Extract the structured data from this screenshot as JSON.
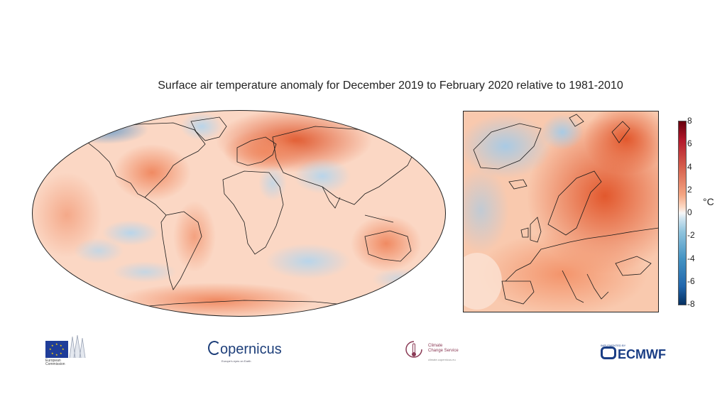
{
  "title": "Surface air temperature anomaly for December 2019 to February 2020 relative to 1981-2010",
  "colorbar": {
    "unit": "°C",
    "ticks": [
      "8",
      "6",
      "4",
      "2",
      "0",
      "-2",
      "-4",
      "-6",
      "-8"
    ],
    "colors": [
      "#67000d",
      "#b2182b",
      "#d6604d",
      "#f4a582",
      "#f7f7f7",
      "#92c5de",
      "#4393c3",
      "#2166ac",
      "#053061"
    ]
  },
  "logos": {
    "ec": {
      "line1": "European",
      "line2": "Commission"
    },
    "copernicus": {
      "name": "opernicus",
      "tagline": "Europe's eyes on Earth"
    },
    "c3s": {
      "line1": "Climate",
      "line2": "Change Service",
      "sub": "climate.copernicus.eu"
    },
    "ecmwf": {
      "name": "ECMWF",
      "sub": "IMPLEMENTED BY"
    }
  },
  "colors": {
    "warm": "#e8603a",
    "cool": "#9ec4e0",
    "coast": "#1a1a1a"
  }
}
